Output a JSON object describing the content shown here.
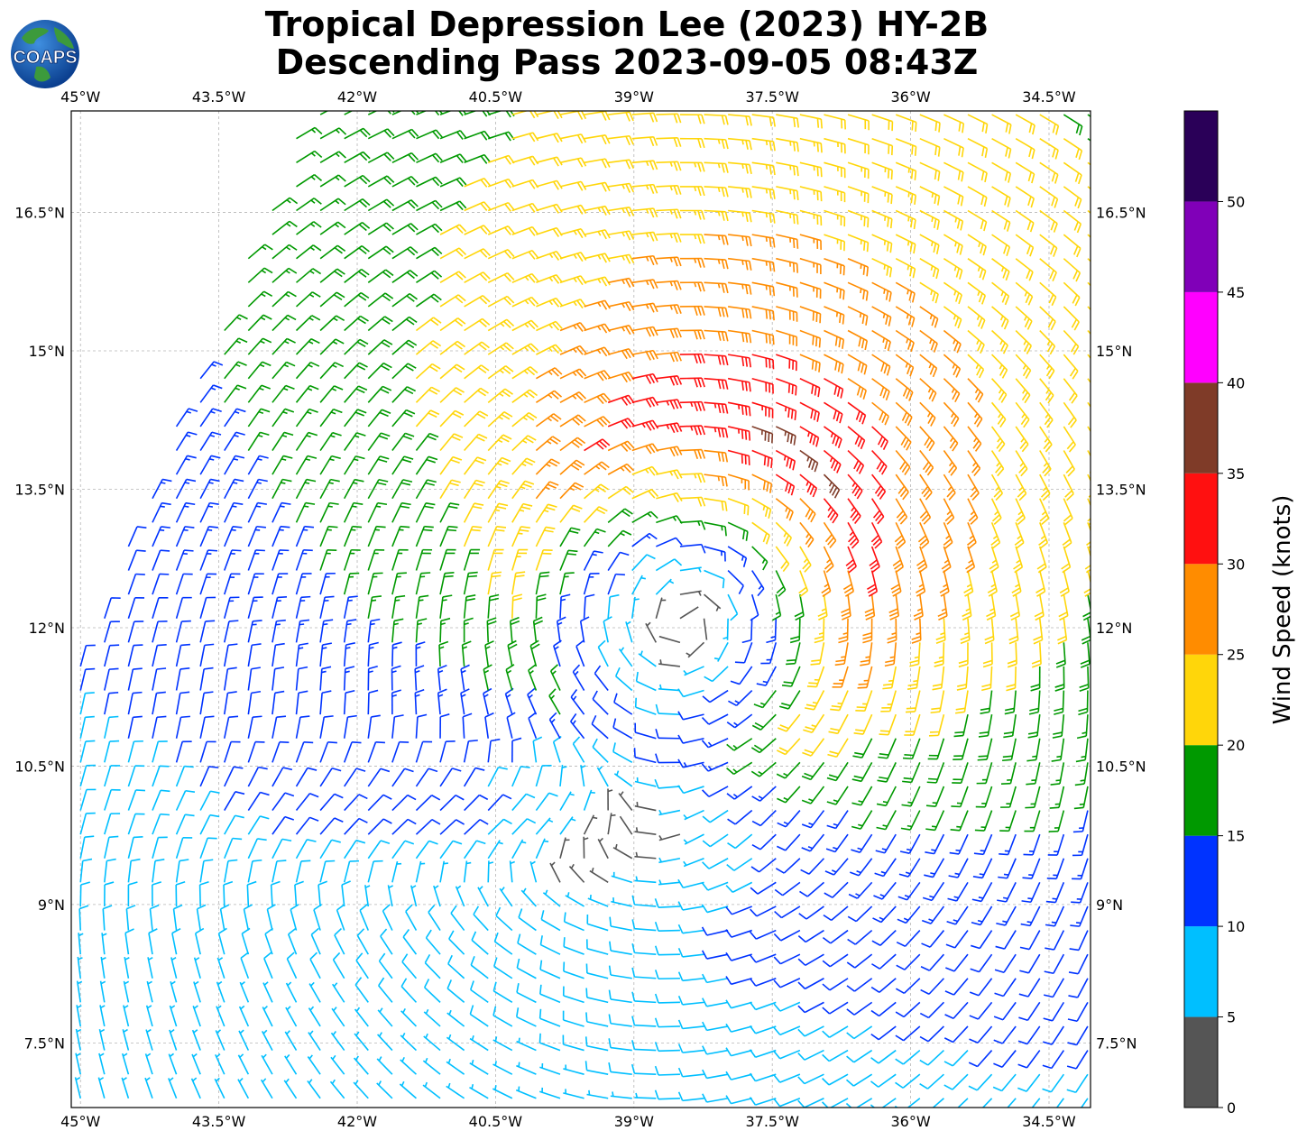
{
  "title": {
    "line1": "Tropical Depression Lee (2023) HY-2B",
    "line2": "Descending Pass 2023-09-05 08:43Z"
  },
  "logo": {
    "text": "COAPS",
    "icon": "coaps-globe-logo"
  },
  "map": {
    "lon_range": [
      -45.1,
      -34.05
    ],
    "lat_range": [
      6.8,
      17.6
    ],
    "grid": true,
    "lon_ticks": [
      "45°W",
      "43.5°W",
      "42°W",
      "40.5°W",
      "39°W",
      "37.5°W",
      "36°W",
      "34.5°W"
    ],
    "lat_ticks": [
      "7.5°N",
      "9°N",
      "10.5°N",
      "12°N",
      "13.5°N",
      "15°N",
      "16.5°N"
    ],
    "lon_tick_values": [
      -45,
      -43.5,
      -42,
      -40.5,
      -39,
      -37.5,
      -36,
      -34.5
    ],
    "lat_tick_values": [
      7.5,
      9,
      10.5,
      12,
      13.5,
      15,
      16.5
    ],
    "storm_center": {
      "lon": -38.4,
      "lat": 12.4
    },
    "barb_spacing_deg": 0.26
  },
  "colorbar": {
    "label": "Wind Speed (knots)",
    "ticks": [
      "0",
      "5",
      "10",
      "15",
      "20",
      "25",
      "30",
      "35",
      "40",
      "45",
      "50"
    ],
    "bins": [
      0,
      5,
      10,
      15,
      20,
      25,
      30,
      35,
      40,
      45,
      50,
      55
    ],
    "colors": [
      "#555555",
      "#00bfff",
      "#0033ff",
      "#009900",
      "#ffd60a",
      "#ff8c00",
      "#ff1010",
      "#7f3b28",
      "#ff00ff",
      "#8000b8",
      "#2a0058"
    ]
  }
}
